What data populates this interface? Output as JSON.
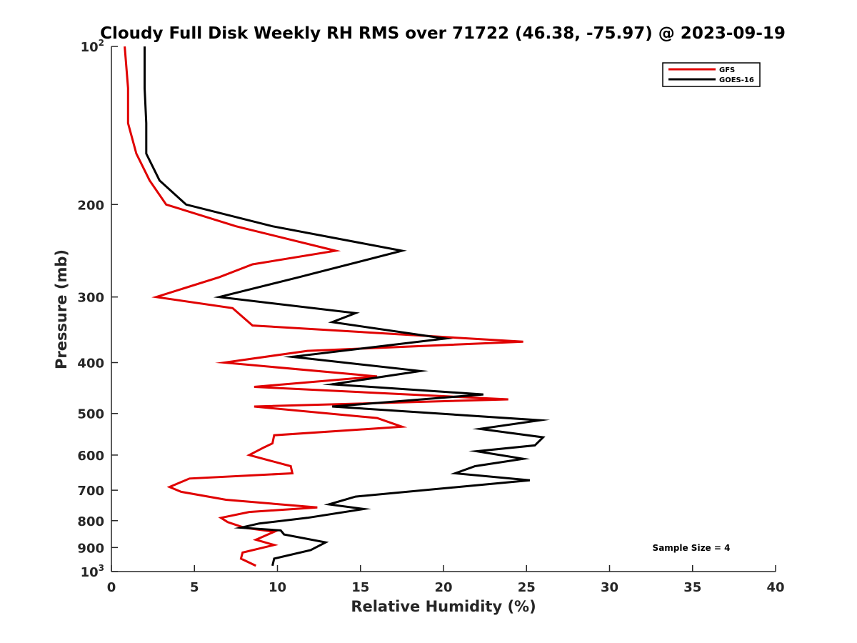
{
  "chart_data": {
    "type": "line",
    "title": "Cloudy Full Disk Weekly RH RMS over 71722 (46.38, -75.97) @ 2023-09-19",
    "xlabel": "Relative Humidity (%)",
    "ylabel": "Pressure (mb)",
    "xlim": [
      0,
      40
    ],
    "ylim": [
      100,
      1000
    ],
    "yscale": "log",
    "y_reversed": true,
    "xticks": [
      0,
      5,
      10,
      15,
      20,
      25,
      30,
      35,
      40
    ],
    "xtick_labels": [
      "0",
      "5",
      "10",
      "15",
      "20",
      "25",
      "30",
      "35",
      "40"
    ],
    "yticks": [
      {
        "value": 100,
        "base": "10",
        "exp": "2"
      },
      {
        "value": 200,
        "label": "200"
      },
      {
        "value": 300,
        "label": "300"
      },
      {
        "value": 400,
        "label": "400"
      },
      {
        "value": 500,
        "label": "500"
      },
      {
        "value": 600,
        "label": "600"
      },
      {
        "value": 700,
        "label": "700"
      },
      {
        "value": 800,
        "label": "800"
      },
      {
        "value": 900,
        "label": "900"
      },
      {
        "value": 1000,
        "base": "10",
        "exp": "3"
      }
    ],
    "legend_position": "top-right",
    "annotation": "Sample Size = 4",
    "series": [
      {
        "name": "GFS",
        "color": "#e00000",
        "x": [
          0.8,
          1.0,
          1.0,
          1.5,
          2.3,
          3.3,
          7.5,
          13.5,
          8.5,
          6.5,
          2.7,
          7.3,
          8.5,
          24.8,
          11.8,
          6.8,
          16.0,
          8.6,
          23.9,
          8.6,
          16.0,
          17.5,
          9.8,
          9.7,
          9.2,
          8.3,
          10.8,
          10.9,
          4.7,
          3.5,
          4.2,
          6.9,
          12.4,
          8.3,
          6.6,
          7.0,
          8.0,
          9.8,
          8.7,
          9.8,
          7.9,
          7.8,
          8.7
        ],
        "y": [
          100,
          120,
          140,
          160,
          180,
          200,
          220,
          245,
          260,
          275,
          300,
          315,
          340,
          365,
          380,
          400,
          425,
          445,
          470,
          485,
          510,
          530,
          550,
          570,
          580,
          600,
          630,
          650,
          665,
          690,
          705,
          730,
          755,
          770,
          790,
          805,
          825,
          840,
          870,
          890,
          920,
          945,
          975
        ]
      },
      {
        "name": "GOES-16",
        "color": "#000000",
        "x": [
          2.0,
          2.0,
          2.1,
          2.1,
          2.9,
          4.5,
          9.7,
          17.5,
          11.3,
          6.5,
          14.7,
          13.3,
          20.1,
          10.9,
          18.6,
          13.3,
          22.4,
          13.3,
          25.8,
          22.2,
          26.0,
          25.5,
          22.0,
          24.8,
          21.9,
          20.7,
          25.2,
          14.7,
          13.1,
          15.2,
          11.8,
          8.9,
          7.8,
          10.2,
          10.4,
          12.9,
          12.0,
          9.8,
          9.7
        ],
        "y": [
          100,
          120,
          140,
          160,
          180,
          200,
          220,
          245,
          275,
          300,
          322,
          335,
          360,
          390,
          415,
          440,
          460,
          485,
          515,
          535,
          555,
          575,
          590,
          610,
          630,
          650,
          670,
          720,
          745,
          760,
          790,
          810,
          825,
          835,
          850,
          880,
          910,
          945,
          975
        ]
      }
    ]
  }
}
